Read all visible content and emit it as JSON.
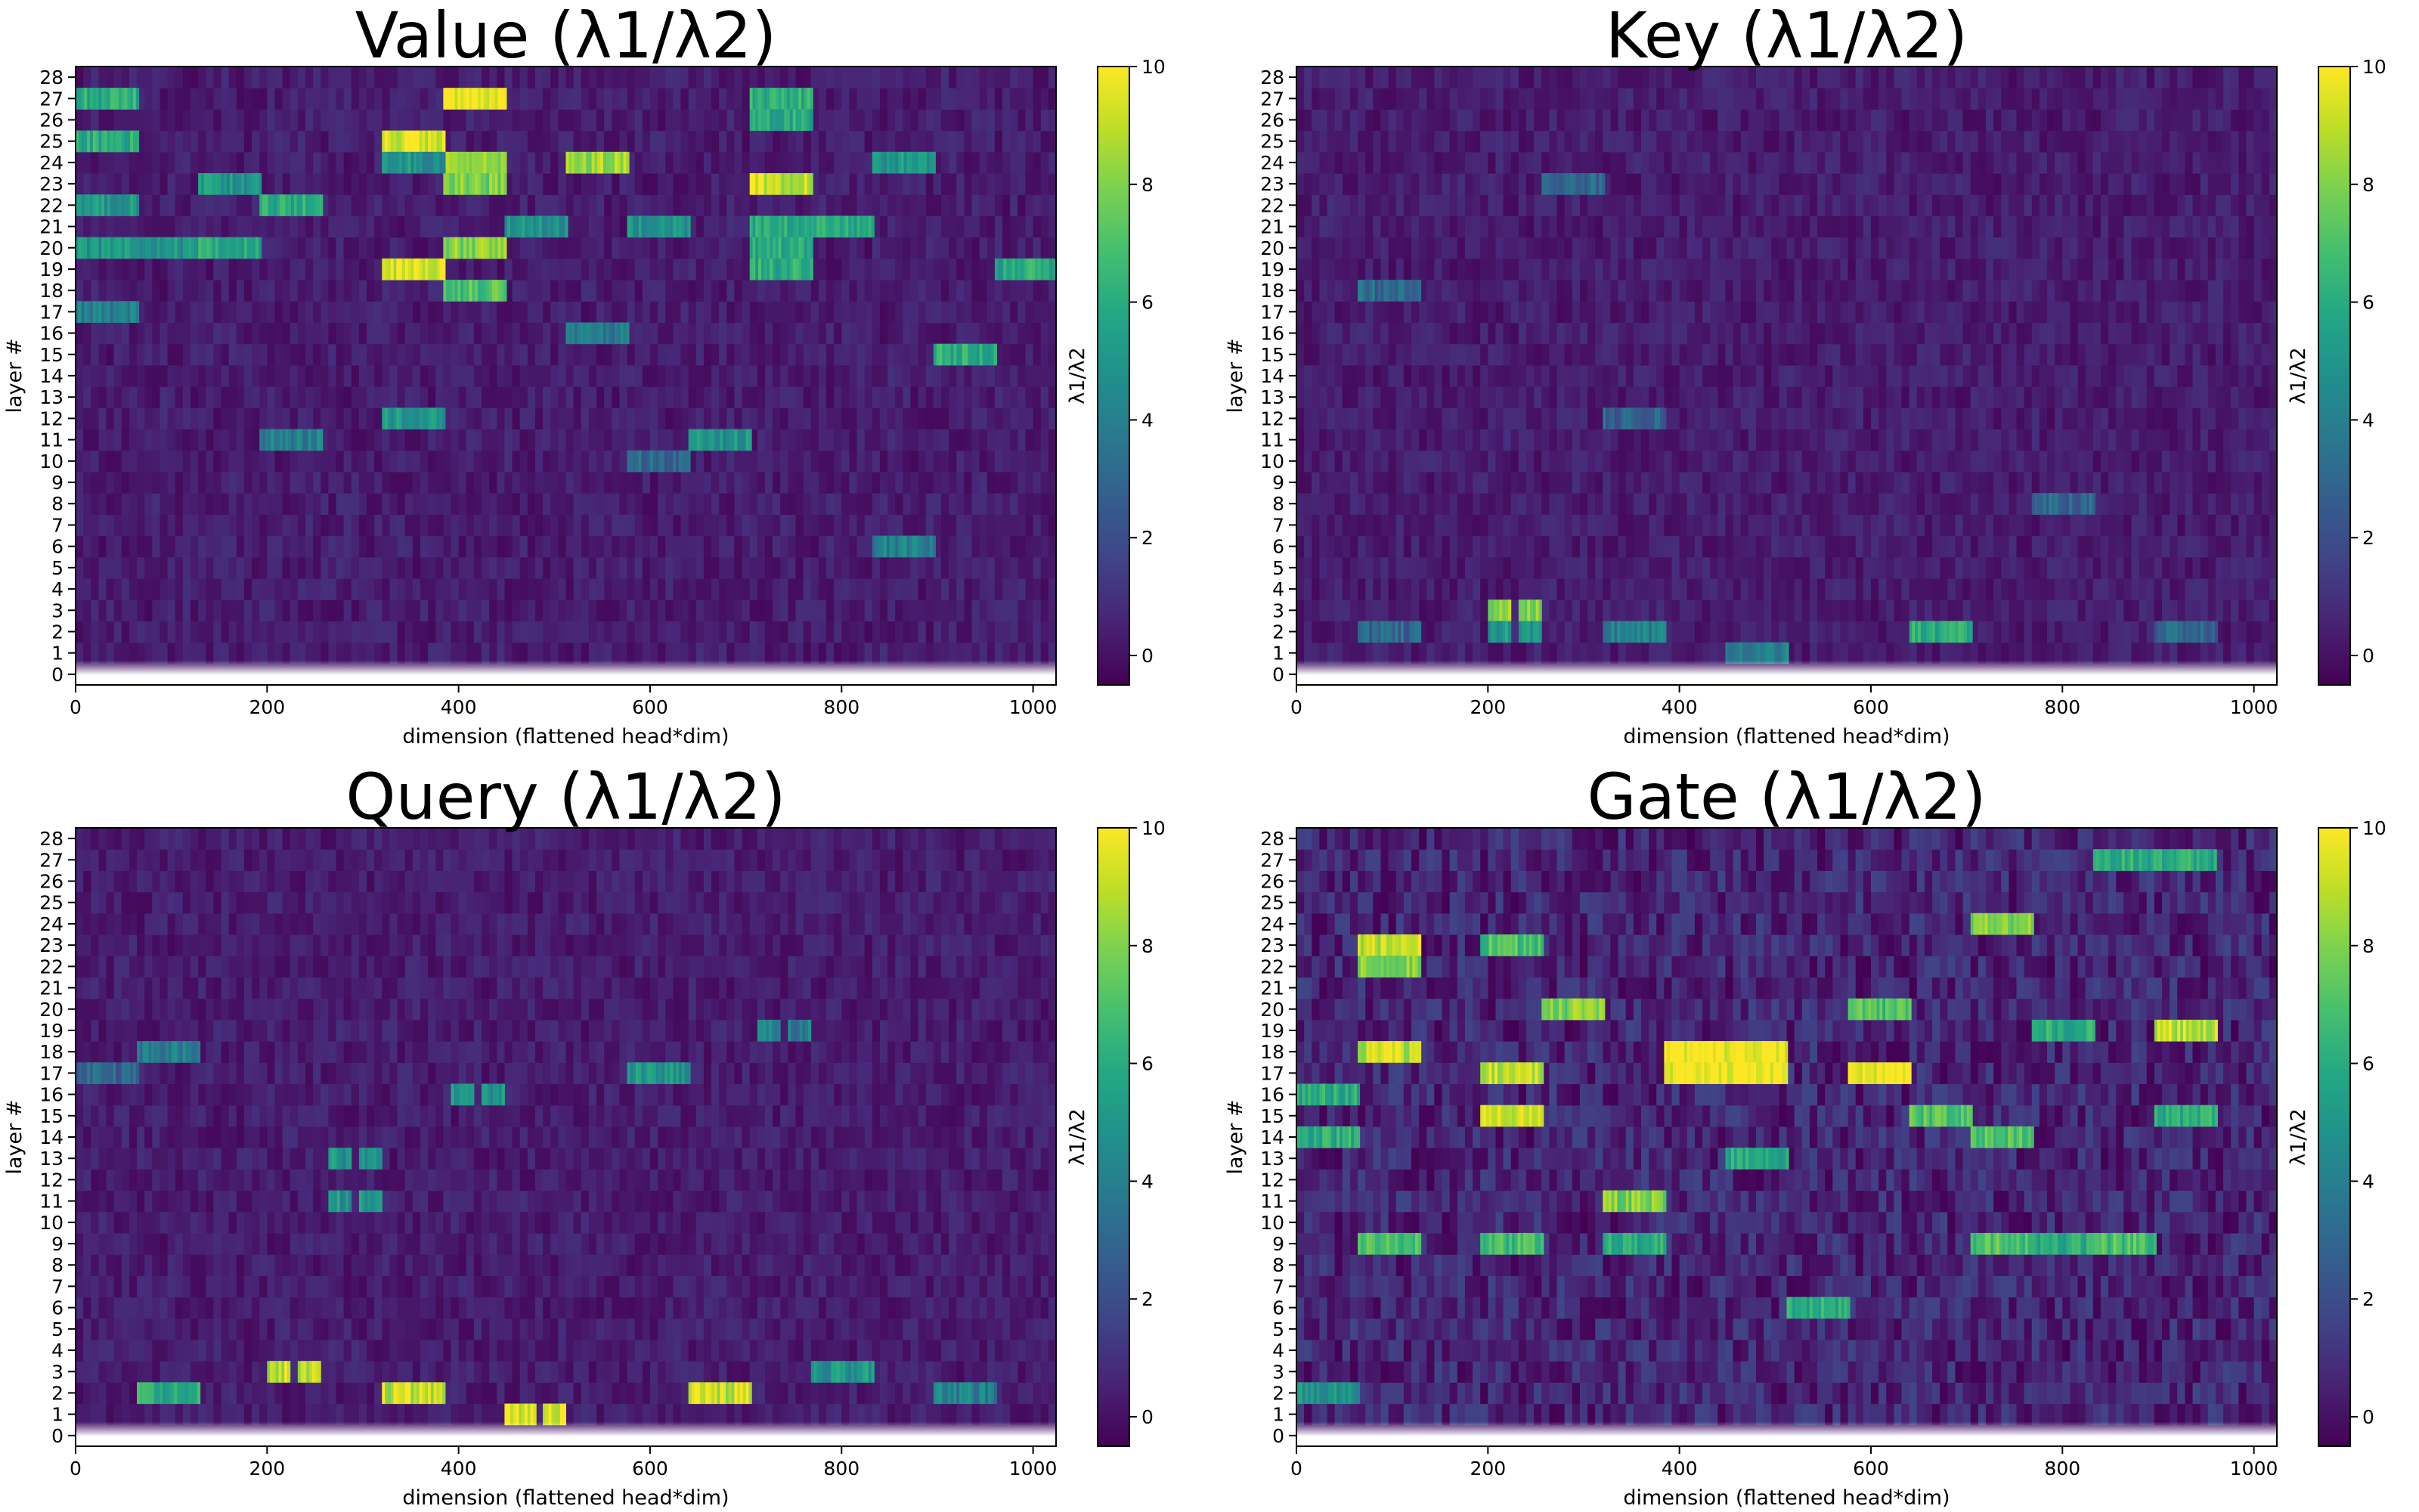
{
  "chart_data": [
    {
      "type": "heatmap",
      "title": "Value  (λ1/λ2)",
      "xlabel": "dimension (flattened head*dim)",
      "ylabel": "layer #",
      "colorbar_label": "λ1/λ2",
      "colormap": "viridis",
      "x_range": [
        0,
        1024
      ],
      "y_range": [
        -0.5,
        28.5
      ],
      "x_ticks": [
        0,
        200,
        400,
        600,
        800,
        1000
      ],
      "y_ticks": [
        0,
        1,
        2,
        3,
        4,
        5,
        6,
        7,
        8,
        9,
        10,
        11,
        12,
        13,
        14,
        15,
        16,
        17,
        18,
        19,
        20,
        21,
        22,
        23,
        24,
        25,
        26,
        27,
        28
      ],
      "colorbar_range": [
        -0.5,
        10
      ],
      "colorbar_ticks": [
        0,
        2,
        4,
        6,
        8,
        10
      ],
      "hotspots": [
        {
          "x0": 384,
          "x1": 448,
          "layer": 27,
          "value": 10
        },
        {
          "x0": 320,
          "x1": 384,
          "layer": 25,
          "value": 9.5
        },
        {
          "x0": 320,
          "x1": 384,
          "layer": 19,
          "value": 9.5
        },
        {
          "x0": 384,
          "x1": 448,
          "layer": 24,
          "value": 8
        },
        {
          "x0": 384,
          "x1": 448,
          "layer": 23,
          "value": 8
        },
        {
          "x0": 384,
          "x1": 448,
          "layer": 20,
          "value": 8
        },
        {
          "x0": 384,
          "x1": 448,
          "layer": 18,
          "value": 7
        },
        {
          "x0": 512,
          "x1": 576,
          "layer": 24,
          "value": 8.5
        },
        {
          "x0": 704,
          "x1": 768,
          "layer": 23,
          "value": 9
        },
        {
          "x0": 704,
          "x1": 768,
          "layer": 27,
          "value": 6
        },
        {
          "x0": 704,
          "x1": 768,
          "layer": 26,
          "value": 6
        },
        {
          "x0": 704,
          "x1": 768,
          "layer": 21,
          "value": 6
        },
        {
          "x0": 704,
          "x1": 768,
          "layer": 20,
          "value": 6
        },
        {
          "x0": 704,
          "x1": 768,
          "layer": 19,
          "value": 6
        },
        {
          "x0": 0,
          "x1": 64,
          "layer": 27,
          "value": 6
        },
        {
          "x0": 0,
          "x1": 64,
          "layer": 25,
          "value": 6
        },
        {
          "x0": 0,
          "x1": 64,
          "layer": 22,
          "value": 5
        },
        {
          "x0": 0,
          "x1": 64,
          "layer": 20,
          "value": 5
        },
        {
          "x0": 64,
          "x1": 128,
          "layer": 20,
          "value": 5
        },
        {
          "x0": 128,
          "x1": 192,
          "layer": 20,
          "value": 6
        },
        {
          "x0": 128,
          "x1": 192,
          "layer": 23,
          "value": 5
        },
        {
          "x0": 192,
          "x1": 256,
          "layer": 22,
          "value": 6
        },
        {
          "x0": 320,
          "x1": 384,
          "layer": 24,
          "value": 5
        },
        {
          "x0": 448,
          "x1": 512,
          "layer": 21,
          "value": 5
        },
        {
          "x0": 576,
          "x1": 640,
          "layer": 21,
          "value": 5
        },
        {
          "x0": 768,
          "x1": 832,
          "layer": 21,
          "value": 6
        },
        {
          "x0": 832,
          "x1": 896,
          "layer": 24,
          "value": 5
        },
        {
          "x0": 960,
          "x1": 1024,
          "layer": 19,
          "value": 6
        },
        {
          "x0": 896,
          "x1": 960,
          "layer": 15,
          "value": 6
        },
        {
          "x0": 640,
          "x1": 704,
          "layer": 11,
          "value": 5
        },
        {
          "x0": 320,
          "x1": 384,
          "layer": 12,
          "value": 5
        },
        {
          "x0": 512,
          "x1": 576,
          "layer": 16,
          "value": 4
        },
        {
          "x0": 192,
          "x1": 256,
          "layer": 11,
          "value": 4
        },
        {
          "x0": 832,
          "x1": 896,
          "layer": 6,
          "value": 4
        },
        {
          "x0": 576,
          "x1": 640,
          "layer": 10,
          "value": 3
        },
        {
          "x0": 0,
          "x1": 64,
          "layer": 17,
          "value": 4
        }
      ]
    },
    {
      "type": "heatmap",
      "title": "Key  (λ1/λ2)",
      "xlabel": "dimension (flattened head*dim)",
      "ylabel": "layer #",
      "colorbar_label": "λ1/λ2",
      "colormap": "viridis",
      "x_range": [
        0,
        1024
      ],
      "y_range": [
        -0.5,
        28.5
      ],
      "x_ticks": [
        0,
        200,
        400,
        600,
        800,
        1000
      ],
      "y_ticks": [
        0,
        1,
        2,
        3,
        4,
        5,
        6,
        7,
        8,
        9,
        10,
        11,
        12,
        13,
        14,
        15,
        16,
        17,
        18,
        19,
        20,
        21,
        22,
        23,
        24,
        25,
        26,
        27,
        28
      ],
      "colorbar_range": [
        -0.5,
        10
      ],
      "colorbar_ticks": [
        0,
        2,
        4,
        6,
        8,
        10
      ],
      "hotspots": [
        {
          "x0": 200,
          "x1": 222,
          "layer": 3,
          "value": 8
        },
        {
          "x0": 232,
          "x1": 254,
          "layer": 3,
          "value": 8
        },
        {
          "x0": 200,
          "x1": 222,
          "layer": 2,
          "value": 5
        },
        {
          "x0": 232,
          "x1": 254,
          "layer": 2,
          "value": 5
        },
        {
          "x0": 640,
          "x1": 704,
          "layer": 2,
          "value": 6
        },
        {
          "x0": 320,
          "x1": 384,
          "layer": 2,
          "value": 4
        },
        {
          "x0": 448,
          "x1": 512,
          "layer": 1,
          "value": 4
        },
        {
          "x0": 64,
          "x1": 128,
          "layer": 2,
          "value": 3
        },
        {
          "x0": 896,
          "x1": 960,
          "layer": 2,
          "value": 3
        },
        {
          "x0": 256,
          "x1": 320,
          "layer": 23,
          "value": 3
        },
        {
          "x0": 64,
          "x1": 128,
          "layer": 18,
          "value": 3
        },
        {
          "x0": 320,
          "x1": 384,
          "layer": 12,
          "value": 3
        },
        {
          "x0": 768,
          "x1": 832,
          "layer": 8,
          "value": 3
        }
      ]
    },
    {
      "type": "heatmap",
      "title": "Query  (λ1/λ2)",
      "xlabel": "dimension (flattened head*dim)",
      "ylabel": "layer #",
      "colorbar_label": "λ1/λ2",
      "colormap": "viridis",
      "x_range": [
        0,
        1024
      ],
      "y_range": [
        -0.5,
        28.5
      ],
      "x_ticks": [
        0,
        200,
        400,
        600,
        800,
        1000
      ],
      "y_ticks": [
        0,
        1,
        2,
        3,
        4,
        5,
        6,
        7,
        8,
        9,
        10,
        11,
        12,
        13,
        14,
        15,
        16,
        17,
        18,
        19,
        20,
        21,
        22,
        23,
        24,
        25,
        26,
        27,
        28
      ],
      "colorbar_range": [
        -0.5,
        10
      ],
      "colorbar_ticks": [
        0,
        2,
        4,
        6,
        8,
        10
      ],
      "hotspots": [
        {
          "x0": 200,
          "x1": 222,
          "layer": 3,
          "value": 9
        },
        {
          "x0": 232,
          "x1": 254,
          "layer": 3,
          "value": 9
        },
        {
          "x0": 320,
          "x1": 384,
          "layer": 2,
          "value": 9
        },
        {
          "x0": 640,
          "x1": 704,
          "layer": 2,
          "value": 9
        },
        {
          "x0": 448,
          "x1": 480,
          "layer": 1,
          "value": 9.5
        },
        {
          "x0": 488,
          "x1": 512,
          "layer": 1,
          "value": 9.5
        },
        {
          "x0": 64,
          "x1": 128,
          "layer": 2,
          "value": 6
        },
        {
          "x0": 768,
          "x1": 832,
          "layer": 3,
          "value": 5
        },
        {
          "x0": 896,
          "x1": 960,
          "layer": 2,
          "value": 4
        },
        {
          "x0": 576,
          "x1": 640,
          "layer": 17,
          "value": 5
        },
        {
          "x0": 64,
          "x1": 128,
          "layer": 18,
          "value": 4
        },
        {
          "x0": 264,
          "x1": 288,
          "layer": 13,
          "value": 5
        },
        {
          "x0": 296,
          "x1": 320,
          "layer": 13,
          "value": 5
        },
        {
          "x0": 264,
          "x1": 288,
          "layer": 11,
          "value": 5
        },
        {
          "x0": 296,
          "x1": 320,
          "layer": 11,
          "value": 5
        },
        {
          "x0": 392,
          "x1": 416,
          "layer": 16,
          "value": 5
        },
        {
          "x0": 424,
          "x1": 448,
          "layer": 16,
          "value": 5
        },
        {
          "x0": 712,
          "x1": 736,
          "layer": 19,
          "value": 4
        },
        {
          "x0": 744,
          "x1": 768,
          "layer": 19,
          "value": 4
        },
        {
          "x0": 0,
          "x1": 64,
          "layer": 17,
          "value": 3
        }
      ]
    },
    {
      "type": "heatmap",
      "title": "Gate  (λ1/λ2)",
      "xlabel": "dimension (flattened head*dim)",
      "ylabel": "layer #",
      "colorbar_label": "λ1/λ2",
      "colormap": "viridis",
      "x_range": [
        0,
        1024
      ],
      "y_range": [
        -0.5,
        28.5
      ],
      "x_ticks": [
        0,
        200,
        400,
        600,
        800,
        1000
      ],
      "y_ticks": [
        0,
        1,
        2,
        3,
        4,
        5,
        6,
        7,
        8,
        9,
        10,
        11,
        12,
        13,
        14,
        15,
        16,
        17,
        18,
        19,
        20,
        21,
        22,
        23,
        24,
        25,
        26,
        27,
        28
      ],
      "colorbar_range": [
        -0.5,
        10
      ],
      "colorbar_ticks": [
        0,
        2,
        4,
        6,
        8,
        10
      ],
      "hotspots": [
        {
          "x0": 64,
          "x1": 128,
          "layer": 23,
          "value": 9
        },
        {
          "x0": 64,
          "x1": 128,
          "layer": 22,
          "value": 8
        },
        {
          "x0": 64,
          "x1": 128,
          "layer": 18,
          "value": 9
        },
        {
          "x0": 64,
          "x1": 128,
          "layer": 9,
          "value": 7
        },
        {
          "x0": 0,
          "x1": 64,
          "layer": 16,
          "value": 6
        },
        {
          "x0": 0,
          "x1": 64,
          "layer": 14,
          "value": 6
        },
        {
          "x0": 0,
          "x1": 64,
          "layer": 2,
          "value": 5
        },
        {
          "x0": 192,
          "x1": 256,
          "layer": 17,
          "value": 9
        },
        {
          "x0": 192,
          "x1": 256,
          "layer": 15,
          "value": 9
        },
        {
          "x0": 192,
          "x1": 256,
          "layer": 23,
          "value": 7
        },
        {
          "x0": 192,
          "x1": 256,
          "layer": 9,
          "value": 7
        },
        {
          "x0": 256,
          "x1": 320,
          "layer": 20,
          "value": 8
        },
        {
          "x0": 320,
          "x1": 384,
          "layer": 11,
          "value": 8
        },
        {
          "x0": 320,
          "x1": 384,
          "layer": 9,
          "value": 6
        },
        {
          "x0": 384,
          "x1": 512,
          "layer": 18,
          "value": 10
        },
        {
          "x0": 384,
          "x1": 512,
          "layer": 17,
          "value": 10
        },
        {
          "x0": 448,
          "x1": 512,
          "layer": 13,
          "value": 6
        },
        {
          "x0": 512,
          "x1": 576,
          "layer": 6,
          "value": 6
        },
        {
          "x0": 576,
          "x1": 640,
          "layer": 17,
          "value": 10
        },
        {
          "x0": 576,
          "x1": 640,
          "layer": 20,
          "value": 7
        },
        {
          "x0": 640,
          "x1": 704,
          "layer": 15,
          "value": 7
        },
        {
          "x0": 704,
          "x1": 768,
          "layer": 24,
          "value": 8
        },
        {
          "x0": 704,
          "x1": 768,
          "layer": 14,
          "value": 7
        },
        {
          "x0": 704,
          "x1": 768,
          "layer": 9,
          "value": 7
        },
        {
          "x0": 832,
          "x1": 896,
          "layer": 9,
          "value": 7
        },
        {
          "x0": 768,
          "x1": 832,
          "layer": 9,
          "value": 6
        },
        {
          "x0": 896,
          "x1": 960,
          "layer": 19,
          "value": 9
        },
        {
          "x0": 832,
          "x1": 960,
          "layer": 27,
          "value": 6
        },
        {
          "x0": 896,
          "x1": 960,
          "layer": 15,
          "value": 6
        },
        {
          "x0": 768,
          "x1": 832,
          "layer": 19,
          "value": 6
        }
      ]
    }
  ]
}
